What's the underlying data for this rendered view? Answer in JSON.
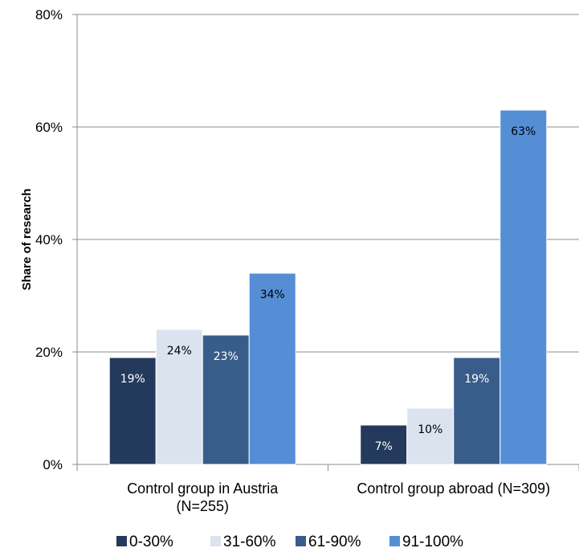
{
  "chart_data": {
    "type": "bar",
    "ylabel": "Share of research",
    "xlabel": "",
    "ylim": [
      0,
      80
    ],
    "yticks": [
      "0%",
      "20%",
      "40%",
      "60%",
      "80%"
    ],
    "grid": true,
    "legend_position": "bottom",
    "categories": [
      [
        "Control group in Austria",
        "(N=255)"
      ],
      [
        "Control group abroad (N=309)"
      ]
    ],
    "series": [
      {
        "name": "0-30%",
        "values": [
          19,
          7
        ],
        "labels": [
          "19%",
          "7%"
        ],
        "color": "#243a5c",
        "label_color": "#ffffff"
      },
      {
        "name": "31-60%",
        "values": [
          24,
          10
        ],
        "labels": [
          "24%",
          "10%"
        ],
        "color": "#dbe3ef",
        "label_color": "#000000"
      },
      {
        "name": "61-90%",
        "values": [
          23,
          19
        ],
        "labels": [
          "23%",
          "19%"
        ],
        "color": "#385d8a",
        "label_color": "#ffffff"
      },
      {
        "name": "91-100%",
        "values": [
          34,
          63
        ],
        "labels": [
          "34%",
          "63%"
        ],
        "color": "#558ed5",
        "label_color": "#000000"
      }
    ]
  }
}
